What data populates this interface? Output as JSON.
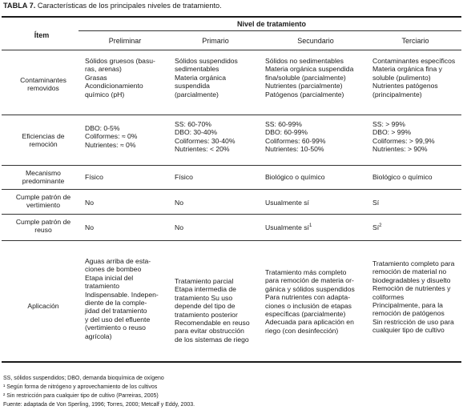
{
  "caption": {
    "label": "TABLA 7.",
    "text": " Características de los principales niveles de tratamiento."
  },
  "header": {
    "item": "Ítem",
    "group": "Nivel de tratamiento",
    "columns": [
      "Preliminar",
      "Primario",
      "Secundario",
      "Terciario"
    ]
  },
  "rows": [
    {
      "label": "Contaminantes\nremovidos",
      "cells": [
        "Sólidos gruesos (basu-\nras, arenas)\nGrasas\nAcondicionamiento\nquímico (pH)",
        "Sólidos suspendidos\nsedimentables\nMateria orgánica\nsuspendida\n(parcialmente)",
        "Sólidos no sedimentables\nMateria orgánica suspendida\nfina/soluble (parcialmente)\nNutrientes (parcialmente)\nPatógenos (parcialmente)",
        "Contaminantes específicos\nMateria orgánica fina y\nsoluble (pulimento)\nNutrientes patógenos\n(principalmente)"
      ]
    },
    {
      "label": "Eficiencias de\nremoción",
      "cells": [
        "DBO: 0-5%\nColiformes: ≈ 0%\nNutrientes: ≈ 0%",
        "SS: 60-70%\nDBO: 30-40%\nColiformes: 30-40%\nNutrientes: < 20%",
        "SS: 60-99%\nDBO: 60-99%\nColiformes: 60-99%\nNutrientes: 10-50%",
        "SS:  > 99%\nDBO: > 99%\nColiformes: > 99,9%\nNutrientes: > 90%"
      ]
    },
    {
      "label": "Mecanismo\npredominante",
      "cells": [
        "Físico",
        "Físico",
        "Biológico o químico",
        "Biológico o químico"
      ]
    },
    {
      "label": "Cumple patrón de\nvertimiento",
      "cells": [
        "No",
        "No",
        "Usualmente sí",
        "Sí"
      ]
    },
    {
      "label": "Cumple patrón de\nreuso",
      "cells": [
        "No",
        "No",
        "Usualmente sí",
        "Sí"
      ],
      "sup": [
        "",
        "",
        "1",
        "2"
      ]
    },
    {
      "label": "Aplicación",
      "cells": [
        "Aguas arriba de esta-\nciones de bombeo\nEtapa inicial del\ntratamiento\nIndispensable. Indepen-\ndiente de la comple-\njidad del tratamiento\ny del uso del efluente\n(vertimiento o reuso\nagrícola)",
        "Tratamiento parcial\nEtapa intermedia de\ntratamiento Su uso\ndepende del tipo de\ntratamiento posterior\nRecomendable en reuso\npara evitar obstrucción\nde los sistemas de riego",
        "Tratamiento más completo\npara remoción de materia or-\ngánica y sólidos suspendidos\nPara nutrientes con adapta-\nciones o inclusión de etapas\nespecíficas (parcialmente)\nAdecuada para aplicación en\nriego (con desinfección)",
        "Tratamiento completo para\nremoción de material no\nbiodegradables y disuelto\nRemoción de nutrientes y\ncoliformes\nPrincipalmente, para la\nremoción de patógenos\nSin restricción de uso para\ncualquier tipo de cultivo"
      ]
    }
  ],
  "notes": [
    "SS, sólidos suspendidos; DBO, demanda bioquímica de oxígeno",
    "¹  Según forma de nitrógeno y aprovechamiento de los cultivos",
    "²  Sin restricción para cualquier tipo de cultivo (Parreiras, 2005)",
    "Fuente: adaptada de Von Sperling, 1996; Torres, 2000; Metcalf y Eddy, 2003."
  ]
}
